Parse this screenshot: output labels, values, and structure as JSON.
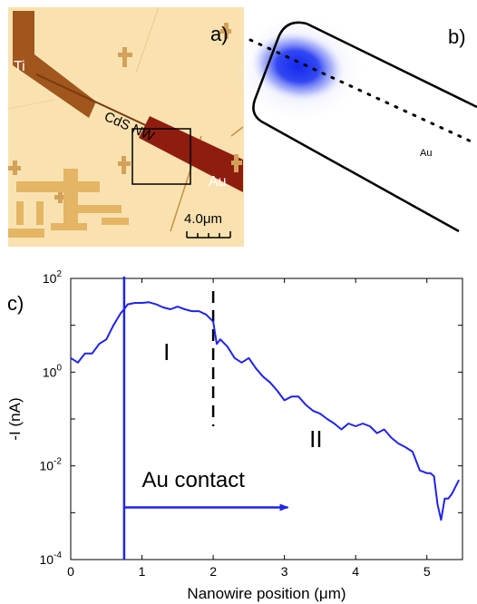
{
  "panel_a": {
    "panel_label": "a)",
    "labels": {
      "ti": "Ti",
      "nanowire": "CdS NW",
      "au": "Au"
    },
    "scale_bar": "4.0μm",
    "colors": {
      "background": "#f9e2b0",
      "electrode": "#a0561c",
      "au_electrode": "#8e1d10",
      "pads": "#e3b565"
    }
  },
  "panel_b": {
    "panel_label": "b)",
    "au_label": "Au",
    "colors": {
      "photocurrent": "#1a2ff0",
      "outline": "#000000"
    }
  },
  "panel_c": {
    "panel_label": "c)"
  },
  "chart_data": {
    "type": "line",
    "xlabel": "Nanowire position (μm)",
    "ylabel": "-I (nA)",
    "xlim": [
      0,
      5.5
    ],
    "ylim": [
      0.0001,
      100
    ],
    "yscale": "log",
    "x_ticks": [
      "0",
      "1",
      "2",
      "3",
      "4",
      "5"
    ],
    "y_ticks": [
      {
        "base": "10",
        "exp": "2",
        "value": 100
      },
      {
        "base": "10",
        "exp": "0",
        "value": 1
      },
      {
        "base": "10",
        "exp": "-2",
        "value": 0.01
      },
      {
        "base": "10",
        "exp": "-4",
        "value": 0.0001
      }
    ],
    "grid": false,
    "series": [
      {
        "color": "#1f24e6",
        "x": [
          0,
          0.1,
          0.2,
          0.3,
          0.4,
          0.5,
          0.6,
          0.7,
          0.75,
          0.8,
          0.9,
          1.0,
          1.1,
          1.2,
          1.3,
          1.4,
          1.5,
          1.6,
          1.7,
          1.8,
          1.9,
          2.0,
          2.05,
          2.1,
          2.2,
          2.3,
          2.4,
          2.5,
          2.6,
          2.7,
          2.8,
          2.9,
          3.0,
          3.1,
          3.2,
          3.3,
          3.4,
          3.5,
          3.6,
          3.7,
          3.8,
          3.9,
          4.0,
          4.1,
          4.2,
          4.3,
          4.4,
          4.5,
          4.6,
          4.7,
          4.8,
          4.9,
          5.0,
          5.05,
          5.1,
          5.15,
          5.2,
          5.25,
          5.3,
          5.35,
          5.45
        ],
        "y": [
          2.0,
          1.6,
          2.5,
          2.5,
          4.0,
          5.0,
          10,
          18,
          22,
          28,
          30,
          30,
          31,
          28,
          24,
          22,
          25,
          22,
          20,
          20,
          17,
          12,
          4.0,
          5.0,
          3.5,
          2.0,
          1.6,
          2.0,
          1.2,
          0.8,
          0.6,
          0.4,
          0.25,
          0.3,
          0.3,
          0.2,
          0.15,
          0.13,
          0.1,
          0.08,
          0.06,
          0.08,
          0.07,
          0.08,
          0.07,
          0.05,
          0.06,
          0.04,
          0.03,
          0.025,
          0.02,
          0.008,
          0.007,
          0.007,
          0.006,
          0.0015,
          0.0007,
          0.002,
          0.002,
          0.0025,
          0.005
        ]
      }
    ],
    "annotations": [
      {
        "text": "I",
        "x": 1.3,
        "y": 1.8
      },
      {
        "text": "II",
        "x": 3.35,
        "y": 0.025
      },
      {
        "text": "Au contact",
        "x": 1.0,
        "y": 0.0035
      }
    ],
    "reference_lines": [
      {
        "x": 0.75,
        "style": "solid",
        "color": "#1f24e6"
      },
      {
        "x": 2.0,
        "style": "dashed",
        "color": "#000000"
      }
    ],
    "arrow": {
      "x_from": 0.75,
      "x_to": 3.05,
      "y": 0.0013,
      "color": "#1f24e6"
    }
  }
}
